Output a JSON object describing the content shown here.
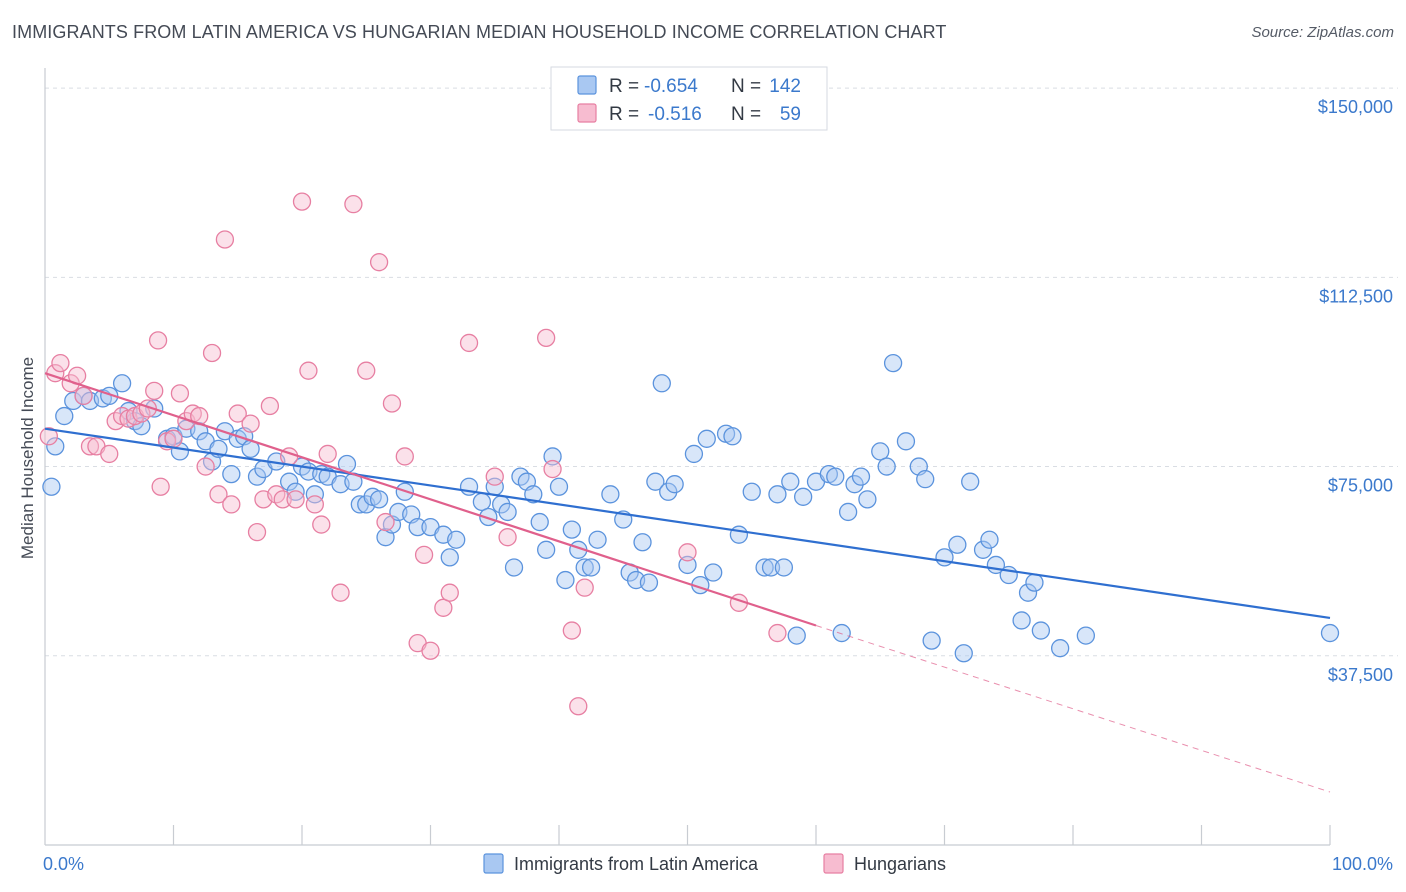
{
  "title": "IMMIGRANTS FROM LATIN AMERICA VS HUNGARIAN MEDIAN HOUSEHOLD INCOME CORRELATION CHART",
  "source": "Source: ZipAtlas.com",
  "colors": {
    "blue_fill": "#a9c8f2",
    "blue_stroke": "#5b93dd",
    "blue_line": "#2f6fd0",
    "pink_fill": "#f7bcd0",
    "pink_stroke": "#e77fa2",
    "pink_line": "#e0608c",
    "tick": "#3b79cc",
    "grid": "#d9dde3"
  },
  "stats_legend": [
    {
      "r_label": "R =",
      "r_value": "-0.654",
      "n_label": "N =",
      "n_value": "142"
    },
    {
      "r_label": "R =",
      "r_value": "-0.516",
      "n_label": "N =",
      "n_value": "59"
    }
  ],
  "bottom_legend": [
    "Immigrants from Latin America",
    "Hungarians"
  ],
  "chart_data": {
    "type": "scatter",
    "ylabel": "Median Household Income",
    "xlim": [
      0,
      100
    ],
    "ylim": [
      0,
      152000
    ],
    "x_tick_labels": [
      "0.0%",
      "100.0%"
    ],
    "y_ticks": [
      37500,
      75000,
      112500,
      150000
    ],
    "y_tick_labels": [
      "$37,500",
      "$75,000",
      "$112,500",
      "$150,000"
    ],
    "grid": true,
    "series": [
      {
        "name": "Immigrants from Latin America",
        "trend": {
          "x": [
            0,
            100
          ],
          "y": [
            82500,
            45000
          ]
        },
        "points": [
          [
            0.5,
            71000
          ],
          [
            0.8,
            79000
          ],
          [
            1.5,
            85000
          ],
          [
            2.2,
            88000
          ],
          [
            3,
            89000
          ],
          [
            3.5,
            88000
          ],
          [
            4.5,
            88500
          ],
          [
            5,
            89000
          ],
          [
            6,
            91500
          ],
          [
            6.5,
            86000
          ],
          [
            7,
            84000
          ],
          [
            7.5,
            83000
          ],
          [
            8.5,
            86500
          ],
          [
            9.5,
            80500
          ],
          [
            10,
            81000
          ],
          [
            10.5,
            78000
          ],
          [
            11,
            82500
          ],
          [
            12,
            82000
          ],
          [
            12.5,
            80000
          ],
          [
            13,
            76000
          ],
          [
            13.5,
            78500
          ],
          [
            14,
            82000
          ],
          [
            14.5,
            73500
          ],
          [
            15,
            80500
          ],
          [
            15.5,
            81000
          ],
          [
            16,
            78500
          ],
          [
            16.5,
            73000
          ],
          [
            17,
            74500
          ],
          [
            18,
            76000
          ],
          [
            19,
            72000
          ],
          [
            19.5,
            70000
          ],
          [
            20,
            75000
          ],
          [
            20.5,
            74000
          ],
          [
            21,
            69500
          ],
          [
            21.5,
            73500
          ],
          [
            22,
            73000
          ],
          [
            23,
            71500
          ],
          [
            23.5,
            75500
          ],
          [
            24,
            72000
          ],
          [
            24.5,
            67500
          ],
          [
            25,
            67500
          ],
          [
            25.5,
            69000
          ],
          [
            26,
            68500
          ],
          [
            26.5,
            61000
          ],
          [
            27,
            63500
          ],
          [
            27.5,
            66000
          ],
          [
            28,
            70000
          ],
          [
            28.5,
            65500
          ],
          [
            29,
            63000
          ],
          [
            30,
            63000
          ],
          [
            31,
            61500
          ],
          [
            31.5,
            57000
          ],
          [
            32,
            60500
          ],
          [
            33,
            71000
          ],
          [
            34,
            68000
          ],
          [
            34.5,
            65000
          ],
          [
            35,
            71000
          ],
          [
            35.5,
            67500
          ],
          [
            36,
            66000
          ],
          [
            36.5,
            55000
          ],
          [
            37,
            73000
          ],
          [
            37.5,
            72000
          ],
          [
            38,
            69500
          ],
          [
            38.5,
            64000
          ],
          [
            39,
            58500
          ],
          [
            39.5,
            77000
          ],
          [
            40,
            71000
          ],
          [
            40.5,
            52500
          ],
          [
            41,
            62500
          ],
          [
            41.5,
            58500
          ],
          [
            42,
            55000
          ],
          [
            42.5,
            55000
          ],
          [
            43,
            60500
          ],
          [
            44,
            69500
          ],
          [
            45,
            64500
          ],
          [
            45.5,
            54000
          ],
          [
            46,
            52500
          ],
          [
            46.5,
            60000
          ],
          [
            47,
            52000
          ],
          [
            47.5,
            72000
          ],
          [
            48,
            91500
          ],
          [
            48.5,
            70000
          ],
          [
            49,
            71500
          ],
          [
            50,
            55500
          ],
          [
            50.5,
            77500
          ],
          [
            51,
            51500
          ],
          [
            51.5,
            80500
          ],
          [
            52,
            54000
          ],
          [
            53,
            81500
          ],
          [
            53.5,
            81000
          ],
          [
            54,
            61500
          ],
          [
            55,
            70000
          ],
          [
            56,
            55000
          ],
          [
            56.5,
            55000
          ],
          [
            57,
            69500
          ],
          [
            57.5,
            55000
          ],
          [
            58,
            72000
          ],
          [
            58.5,
            41500
          ],
          [
            59,
            69000
          ],
          [
            60,
            72000
          ],
          [
            61,
            73500
          ],
          [
            61.5,
            73000
          ],
          [
            62,
            42000
          ],
          [
            62.5,
            66000
          ],
          [
            63,
            71500
          ],
          [
            63.5,
            73000
          ],
          [
            64,
            68500
          ],
          [
            65,
            78000
          ],
          [
            65.5,
            75000
          ],
          [
            66,
            95500
          ],
          [
            67,
            80000
          ],
          [
            68,
            75000
          ],
          [
            68.5,
            72500
          ],
          [
            69,
            40500
          ],
          [
            70,
            57000
          ],
          [
            71,
            59500
          ],
          [
            71.5,
            38000
          ],
          [
            72,
            72000
          ],
          [
            73,
            58500
          ],
          [
            73.5,
            60500
          ],
          [
            74,
            55500
          ],
          [
            75,
            53500
          ],
          [
            76,
            44500
          ],
          [
            76.5,
            50000
          ],
          [
            77,
            52000
          ],
          [
            77.5,
            42500
          ],
          [
            79,
            39000
          ],
          [
            81,
            41500
          ],
          [
            100,
            42000
          ]
        ]
      },
      {
        "name": "Hungarians",
        "trend": {
          "x": [
            0,
            60
          ],
          "y": [
            93500,
            43500
          ]
        },
        "trend_extension": {
          "x": [
            60,
            100
          ],
          "y": [
            43500,
            10500
          ]
        },
        "points": [
          [
            0.3,
            81000
          ],
          [
            0.8,
            93500
          ],
          [
            1.2,
            95500
          ],
          [
            2,
            91500
          ],
          [
            2.5,
            93000
          ],
          [
            3,
            89000
          ],
          [
            3.5,
            79000
          ],
          [
            4,
            79000
          ],
          [
            5,
            77500
          ],
          [
            5.5,
            84000
          ],
          [
            6,
            85000
          ],
          [
            6.5,
            84500
          ],
          [
            7,
            85000
          ],
          [
            7.5,
            85500
          ],
          [
            8,
            86500
          ],
          [
            8.5,
            90000
          ],
          [
            8.8,
            100000
          ],
          [
            9,
            71000
          ],
          [
            9.5,
            80000
          ],
          [
            10,
            80500
          ],
          [
            10.5,
            89500
          ],
          [
            11,
            84000
          ],
          [
            11.5,
            85500
          ],
          [
            12,
            85000
          ],
          [
            12.5,
            75000
          ],
          [
            13,
            97500
          ],
          [
            13.5,
            69500
          ],
          [
            14,
            120000
          ],
          [
            14.5,
            67500
          ],
          [
            15,
            85500
          ],
          [
            16,
            83500
          ],
          [
            16.5,
            62000
          ],
          [
            17,
            68500
          ],
          [
            17.5,
            87000
          ],
          [
            18,
            69500
          ],
          [
            18.5,
            68500
          ],
          [
            19,
            77000
          ],
          [
            19.5,
            68500
          ],
          [
            20,
            127500
          ],
          [
            20.5,
            94000
          ],
          [
            21,
            67500
          ],
          [
            21.5,
            63500
          ],
          [
            22,
            77500
          ],
          [
            23,
            50000
          ],
          [
            24,
            127000
          ],
          [
            25,
            94000
          ],
          [
            26,
            115500
          ],
          [
            26.5,
            64000
          ],
          [
            27,
            87500
          ],
          [
            28,
            77000
          ],
          [
            29,
            40000
          ],
          [
            29.5,
            57500
          ],
          [
            30,
            38500
          ],
          [
            31,
            47000
          ],
          [
            31.5,
            50000
          ],
          [
            33,
            99500
          ],
          [
            35,
            73000
          ],
          [
            36,
            61000
          ],
          [
            39,
            100500
          ],
          [
            39.5,
            74500
          ],
          [
            41,
            42500
          ],
          [
            41.5,
            27500
          ],
          [
            42,
            51000
          ],
          [
            50,
            58000
          ],
          [
            54,
            48000
          ],
          [
            57,
            42000
          ]
        ]
      }
    ]
  }
}
